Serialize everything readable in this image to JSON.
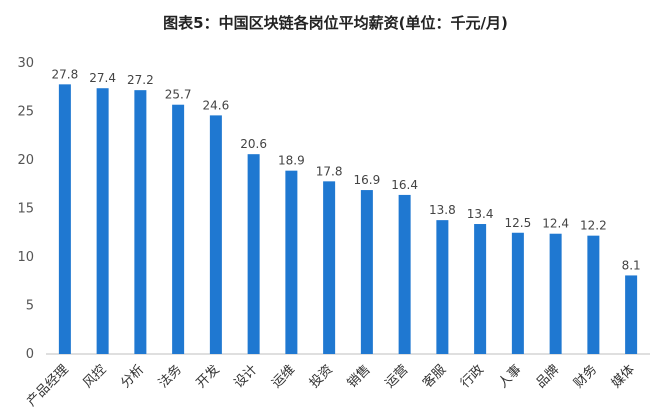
{
  "chart_data": {
    "type": "bar",
    "title": "图表5：中国区块链各岗位平均薪资(单位：千元/月)",
    "categories": [
      "产品经理",
      "风控",
      "分析",
      "法务",
      "开发",
      "设计",
      "运维",
      "投资",
      "销售",
      "运营",
      "客服",
      "行政",
      "人事",
      "品牌",
      "财务",
      "媒体"
    ],
    "values": [
      27.8,
      27.4,
      27.2,
      25.7,
      24.6,
      20.6,
      18.9,
      17.8,
      16.9,
      16.4,
      13.8,
      13.4,
      12.5,
      12.4,
      12.2,
      8.1
    ],
    "ylim": [
      0,
      30
    ],
    "yticks": [
      0,
      5,
      10,
      15,
      20,
      25,
      30
    ],
    "grid": false,
    "colors": {
      "bar": "#1f78d1",
      "axis": "#bfbfbf"
    }
  }
}
